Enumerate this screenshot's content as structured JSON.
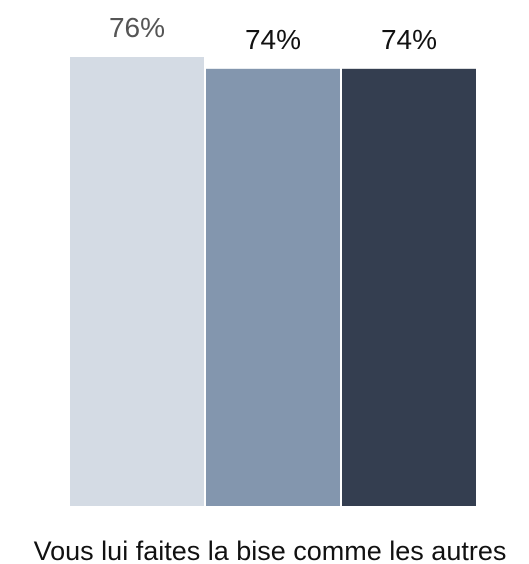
{
  "chart_data": {
    "type": "bar",
    "categories": [
      "Vous lui faites la bise comme les autres"
    ],
    "series": [
      {
        "values": [
          76
        ],
        "label": "76%",
        "color": "#d4dbe4",
        "label_color": "#555555"
      },
      {
        "values": [
          74
        ],
        "label": "74%",
        "color": "#8396ae",
        "label_color": "#111111"
      },
      {
        "values": [
          74
        ],
        "label": "74%",
        "color": "#343e50",
        "label_color": "#111111"
      }
    ],
    "ylim": [
      0,
      76
    ],
    "grid": false,
    "value_unit": "%"
  }
}
